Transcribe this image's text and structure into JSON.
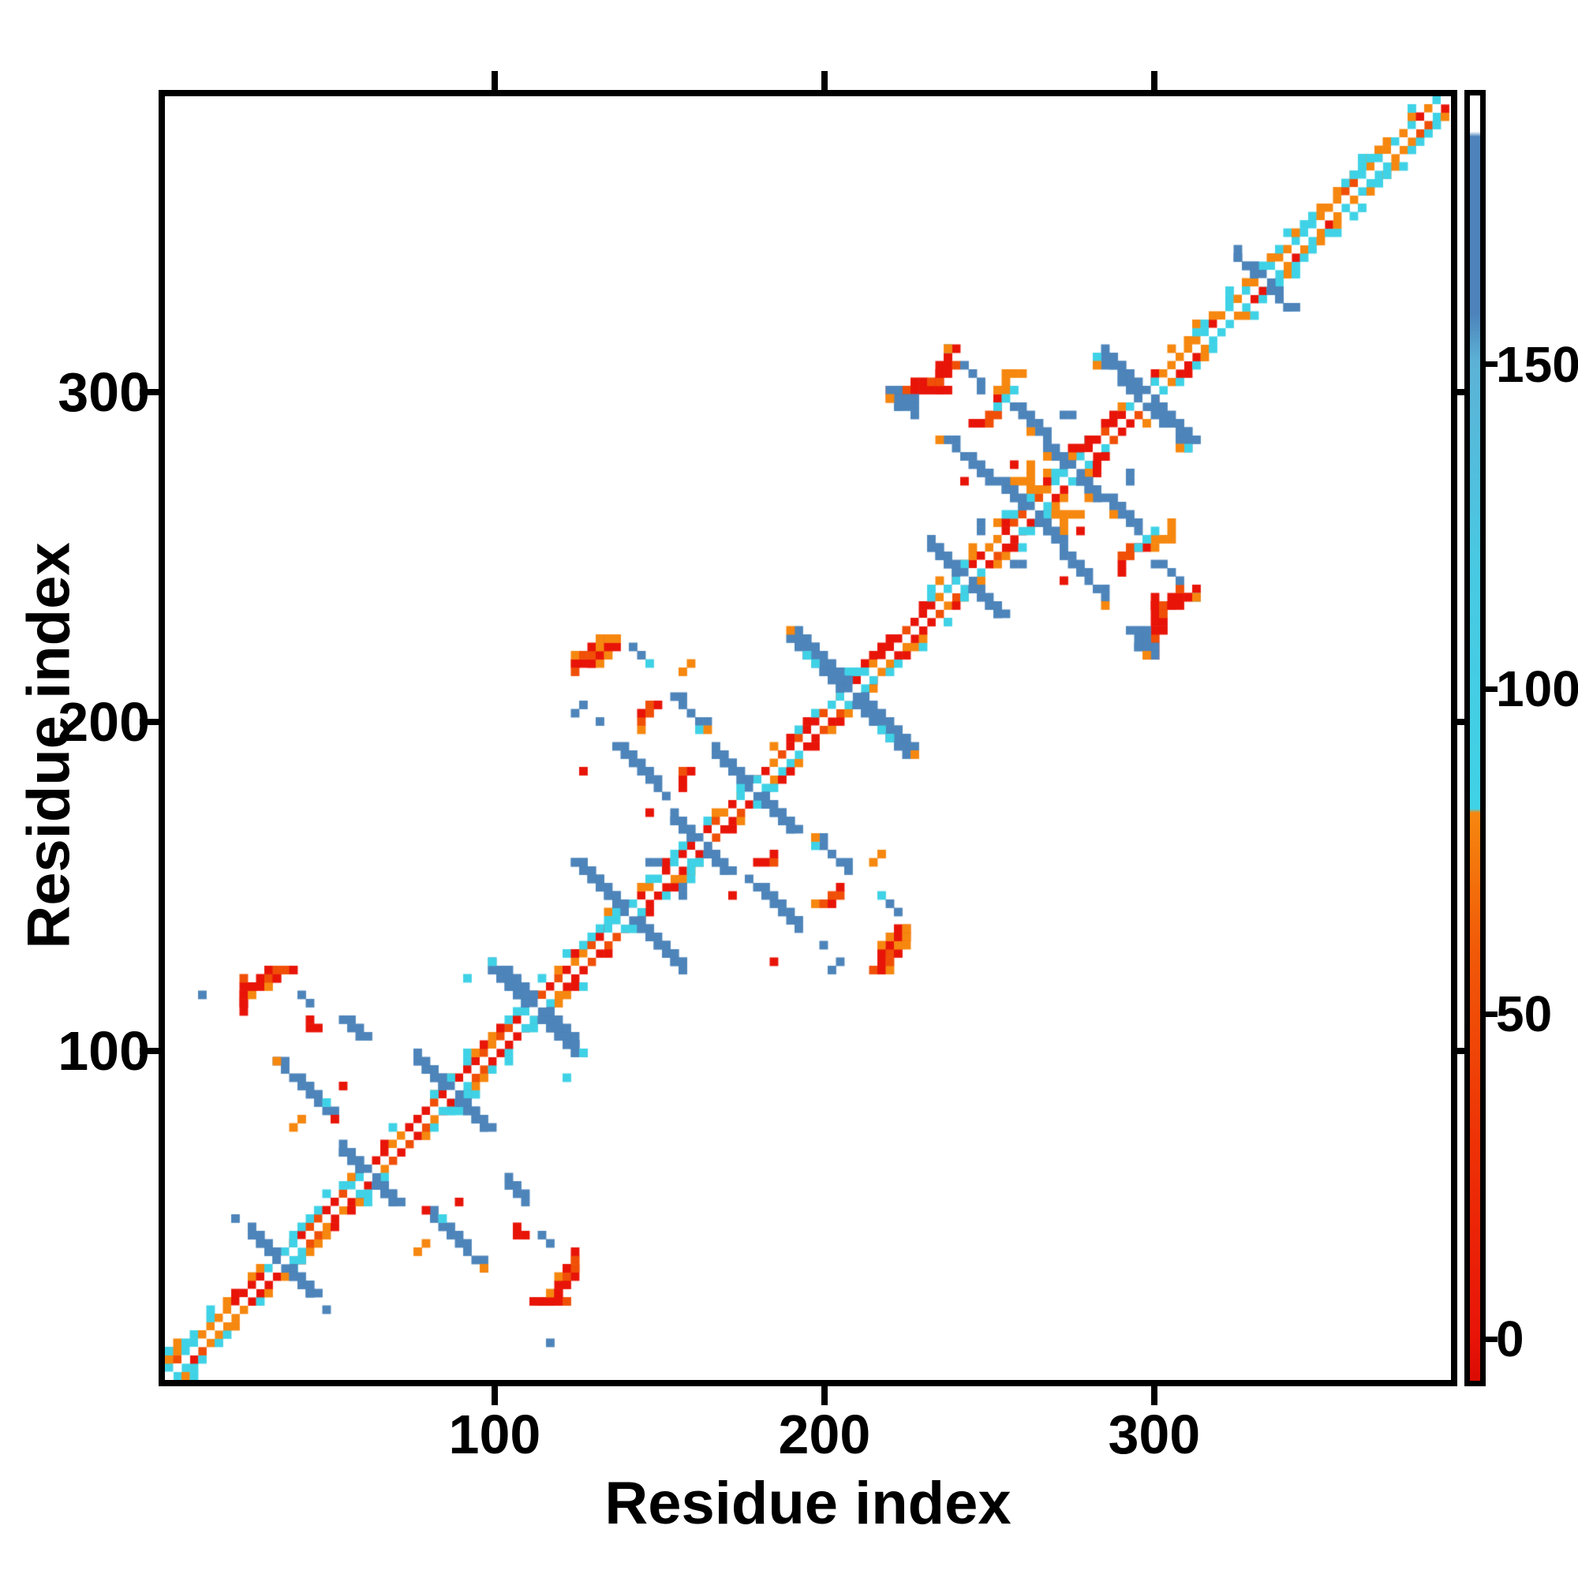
{
  "figure": {
    "background": "#ffffff",
    "border_color": "#000000"
  },
  "chart_data": {
    "type": "heatmap",
    "title": "",
    "xlabel": "Residue index",
    "ylabel": "Residue index",
    "x_range": [
      0,
      390
    ],
    "y_range": [
      0,
      390
    ],
    "x_ticks": [
      100,
      200,
      300
    ],
    "y_ticks": [
      100,
      200,
      300
    ],
    "grid": false,
    "legend_position": "right-colorbar",
    "colors": {
      "red": "#e81408",
      "orangered": "#f04f07",
      "orange": "#f6870f",
      "cyan": "#3fd2e6",
      "blue": "#4d84ba",
      "white": "#ffffff",
      "black": "#000000"
    },
    "colorbar": {
      "ticks": [
        0,
        50,
        100,
        150
      ],
      "range": [
        -6,
        191
      ],
      "stops": [
        [
          0,
          "#da0b04"
        ],
        [
          3.3,
          "#e81408"
        ],
        [
          18.5,
          "#ee3206"
        ],
        [
          33.7,
          "#f15a08"
        ],
        [
          44.2,
          "#f6870f"
        ],
        [
          44.5,
          "#3fd2e6"
        ],
        [
          64,
          "#49c8e2"
        ],
        [
          79.3,
          "#5cb2d6"
        ],
        [
          83,
          "#4d83ba"
        ],
        [
          96.8,
          "#4d83ba"
        ],
        [
          97.2,
          "#ffffff"
        ],
        [
          100,
          "#ffffff"
        ]
      ]
    },
    "crossings": [
      35,
      60,
      86,
      111,
      139,
      160,
      177,
      208,
      242,
      262,
      275,
      297,
      333,
      366
    ],
    "anti_segments": [
      [
        26,
        44,
        44,
        26,
        2
      ],
      [
        52,
        68,
        68,
        52,
        2
      ],
      [
        75,
        97,
        97,
        75,
        2
      ],
      [
        99,
        124,
        124,
        99,
        2
      ],
      [
        123,
        155,
        155,
        123,
        2
      ],
      [
        153,
        168,
        168,
        153,
        2
      ],
      [
        167,
        188,
        188,
        167,
        2
      ],
      [
        191,
        225,
        225,
        191,
        3
      ],
      [
        232,
        252,
        252,
        232,
        2
      ],
      [
        255,
        270,
        270,
        255,
        2
      ],
      [
        267,
        283,
        283,
        267,
        2
      ],
      [
        284,
        311,
        311,
        284,
        3
      ],
      [
        325,
        341,
        341,
        325,
        2
      ],
      [
        34,
        96,
        48,
        83,
        2
      ],
      [
        52,
        109,
        59,
        100,
        2
      ],
      [
        101,
        124,
        113,
        112,
        2
      ],
      [
        137,
        192,
        151,
        177,
        2
      ],
      [
        153,
        206,
        162,
        196,
        2
      ],
      [
        236,
        285,
        250,
        274,
        2
      ],
      [
        256,
        296,
        264,
        288,
        2
      ],
      [
        241,
        307,
        246,
        302,
        1
      ],
      [
        219,
        300,
        225,
        295,
        2
      ]
    ],
    "stair_segments": [
      [
        22,
        112,
        36,
        123,
        2,
        "red"
      ],
      [
        124,
        213,
        134,
        224,
        2,
        "redmix"
      ],
      [
        143,
        196,
        149,
        203,
        1,
        "orangered"
      ],
      [
        155,
        180,
        160,
        185,
        1,
        "red"
      ],
      [
        220,
        297,
        236,
        312,
        2,
        "red"
      ],
      [
        244,
        290,
        253,
        298,
        1,
        "red"
      ],
      [
        257,
        273,
        262,
        277,
        1,
        "orange"
      ],
      [
        274,
        279,
        279,
        284,
        1,
        "red"
      ],
      [
        255,
        300,
        260,
        305,
        1,
        "orange"
      ]
    ],
    "dots": {
      "blue": [
        [
          11,
          117
        ],
        [
          40,
          116
        ],
        [
          42,
          114
        ],
        [
          21,
          47
        ],
        [
          24,
          44
        ],
        [
          124,
          202
        ],
        [
          125,
          205
        ],
        [
          130,
          200
        ],
        [
          146,
          155
        ],
        [
          148,
          157
        ],
        [
          142,
          221
        ],
        [
          144,
          219
        ],
        [
          246,
          257
        ],
        [
          248,
          260
        ],
        [
          226,
          297
        ],
        [
          221,
          296
        ],
        [
          223,
          294
        ],
        [
          227,
          292
        ],
        [
          273,
          293
        ],
        [
          275,
          293
        ],
        [
          247,
          301
        ]
      ],
      "cyan": [
        [
          49,
          82
        ],
        [
          99,
          125
        ],
        [
          146,
          216
        ],
        [
          283,
          310
        ],
        [
          217,
          196
        ],
        [
          220,
          193
        ],
        [
          253,
          294
        ],
        [
          255,
          297
        ],
        [
          257,
          299
        ],
        [
          161,
          197
        ],
        [
          90,
          120
        ],
        [
          238,
          313
        ]
      ],
      "orange": [
        [
          33,
          97
        ],
        [
          164,
          197
        ],
        [
          235,
          286
        ],
        [
          261,
          288
        ],
        [
          190,
          226
        ],
        [
          39,
          76
        ],
        [
          41,
          78
        ],
        [
          157,
          214
        ],
        [
          159,
          217
        ],
        [
          220,
          297
        ],
        [
          237,
          312
        ],
        [
          137,
          224
        ],
        [
          266,
          279
        ],
        [
          253,
          300
        ],
        [
          281,
          308
        ]
      ],
      "red": [
        [
          51,
          79
        ],
        [
          54,
          87
        ],
        [
          42,
          106
        ],
        [
          44,
          108
        ],
        [
          45,
          107
        ],
        [
          126,
          183
        ],
        [
          146,
          172
        ],
        [
          243,
          273
        ],
        [
          256,
          277
        ]
      ]
    }
  }
}
